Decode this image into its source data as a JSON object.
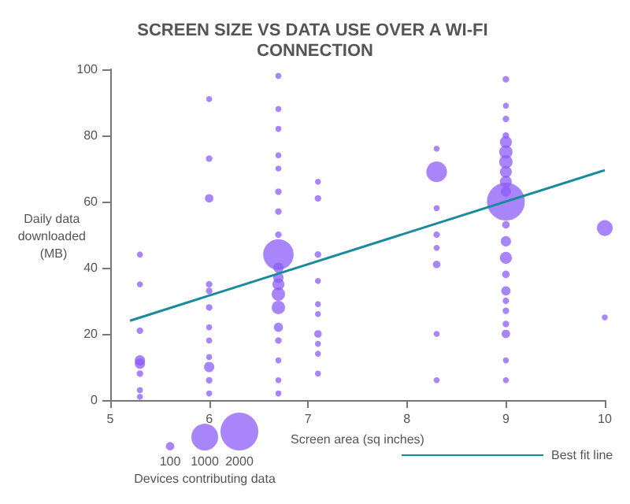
{
  "chart_data": {
    "type": "bubble",
    "title": "SCREEN SIZE VS DATA USE OVER A WI-FI CONNECTION",
    "xlabel": "Screen area (sq inches)",
    "ylabel": "Daily data downloaded (MB)",
    "legend_title": "Devices contributing data",
    "xlim": [
      5,
      10
    ],
    "xticks": [
      5,
      6,
      7,
      8,
      9,
      10
    ],
    "ylim": [
      0,
      100
    ],
    "yticks": [
      0,
      20,
      40,
      60,
      80,
      100
    ],
    "grid": false,
    "legend": "bottom",
    "marker": "circle",
    "size_legend": [
      100,
      1000,
      2000
    ],
    "series": [
      {
        "color": "#8b5cf6",
        "x": [
          5.3,
          5.3,
          5.3,
          5.3,
          5.3,
          5.3,
          5.3,
          5.3,
          6,
          6,
          6,
          6,
          6,
          6,
          6,
          6,
          6,
          6,
          6,
          6,
          6.7,
          6.7,
          6.7,
          6.7,
          6.7,
          6.7,
          6.7,
          6.7,
          6.7,
          6.7,
          6.7,
          6.7,
          6.7,
          6.7,
          6.7,
          6.7,
          6.7,
          6.7,
          6.7,
          7.1,
          7.1,
          7.1,
          7.1,
          7.1,
          7.1,
          7.1,
          7.1,
          7.1,
          7.1,
          8.3,
          8.3,
          8.3,
          8.3,
          8.3,
          8.3,
          8.3,
          8.3,
          9,
          9,
          9,
          9,
          9,
          9,
          9,
          9,
          9,
          9,
          9,
          9,
          9,
          9,
          9,
          9,
          9,
          9,
          9,
          9,
          9,
          9,
          10,
          10
        ],
        "values": [
          44,
          35,
          21,
          12,
          11,
          8,
          3,
          1,
          91,
          73,
          61,
          35,
          33,
          28,
          22,
          18,
          13,
          10,
          6,
          2,
          98,
          88,
          82,
          74,
          70,
          63,
          57,
          50,
          44,
          40,
          37,
          35,
          32,
          28,
          22,
          18,
          12,
          6,
          2,
          66,
          61,
          44,
          36,
          29,
          26,
          20,
          17,
          14,
          8,
          76,
          69,
          58,
          50,
          46,
          41,
          20,
          6,
          97,
          89,
          85,
          80,
          78,
          75,
          72,
          69,
          66,
          63,
          60,
          53,
          48,
          43,
          38,
          33,
          30,
          27,
          23,
          20,
          12,
          6,
          52,
          25
        ],
        "sizes": [
          50,
          50,
          60,
          150,
          150,
          60,
          50,
          50,
          50,
          60,
          100,
          60,
          60,
          60,
          50,
          50,
          50,
          150,
          60,
          50,
          50,
          50,
          50,
          50,
          50,
          60,
          60,
          60,
          1300,
          150,
          150,
          200,
          250,
          250,
          120,
          60,
          50,
          50,
          50,
          50,
          60,
          60,
          50,
          50,
          50,
          80,
          50,
          50,
          50,
          50,
          600,
          50,
          60,
          50,
          80,
          50,
          50,
          60,
          50,
          60,
          60,
          200,
          250,
          250,
          200,
          200,
          150,
          2000,
          80,
          150,
          200,
          80,
          120,
          60,
          60,
          60,
          100,
          50,
          50,
          350,
          50
        ]
      },
      {
        "type": "line",
        "name": "Best fit line",
        "color": "#1a8a9e",
        "marker": "none",
        "x": [
          5.2,
          10
        ],
        "values": [
          24,
          69.5
        ]
      }
    ]
  }
}
